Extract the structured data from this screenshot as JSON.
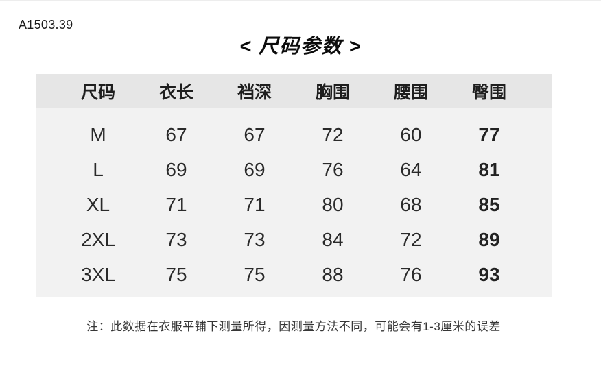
{
  "page": {
    "product_code": "A1503.39",
    "title": "< 尺码参数 >",
    "note": "注：此数据在衣服平铺下测量所得，因测量方法不同，可能会有1-3厘米的误差"
  },
  "colors": {
    "header_bg": "#e6e6e6",
    "body_bg": "#f2f2f2",
    "text": "#262626",
    "page_bg": "#ffffff"
  },
  "chart_data": {
    "type": "table",
    "title": "尺码参数",
    "columns": [
      "尺码",
      "衣长",
      "裆深",
      "胸围",
      "腰围",
      "臀围"
    ],
    "rows": [
      [
        "M",
        "67",
        "67",
        "72",
        "60",
        "77"
      ],
      [
        "L",
        "69",
        "69",
        "76",
        "64",
        "81"
      ],
      [
        "XL",
        "71",
        "71",
        "80",
        "68",
        "85"
      ],
      [
        "2XL",
        "73",
        "73",
        "84",
        "72",
        "89"
      ],
      [
        "3XL",
        "75",
        "75",
        "88",
        "76",
        "93"
      ]
    ]
  }
}
